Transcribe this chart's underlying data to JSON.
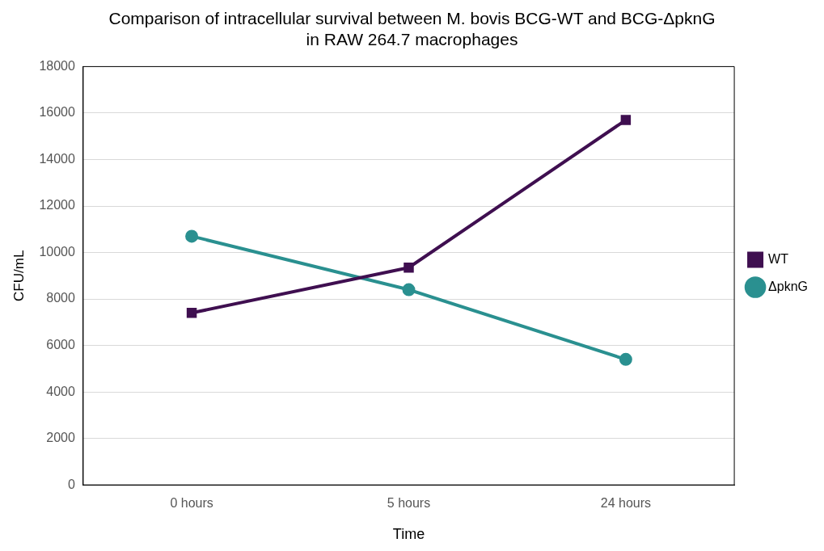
{
  "chart_data": {
    "type": "line",
    "title": "Comparison of intracellular survival between M. bovis BCG-WT and BCG-ΔpknG\nin RAW 264.7 macrophages",
    "xlabel": "Time",
    "ylabel": "CFU/mL",
    "categories": [
      "0 hours",
      "5 hours",
      "24 hours"
    ],
    "series": [
      {
        "name": "WT",
        "color": "#3f0f50",
        "values": [
          7400,
          9350,
          15700
        ],
        "marker": "square"
      },
      {
        "name": "ΔpknG",
        "color": "#2a9090",
        "values": [
          10700,
          8400,
          5400
        ],
        "marker": "circle"
      }
    ],
    "ylim": [
      0,
      18000
    ],
    "yticks": [
      0,
      2000,
      4000,
      6000,
      8000,
      10000,
      12000,
      14000,
      16000,
      18000
    ],
    "grid": "y",
    "legend": "right",
    "line_style": "solid"
  }
}
